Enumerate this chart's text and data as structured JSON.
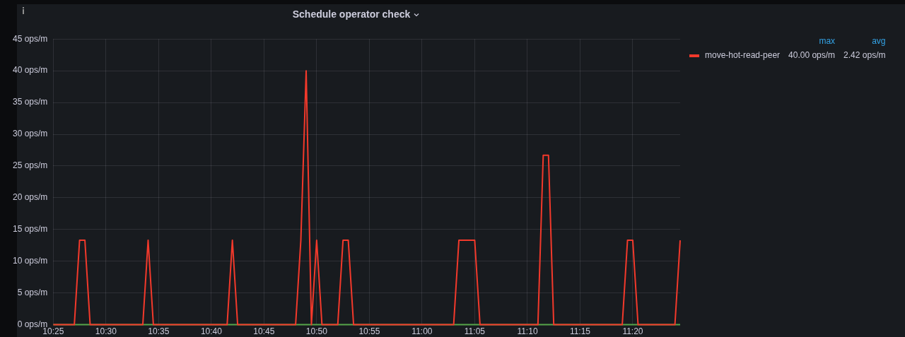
{
  "chart_data": {
    "type": "line",
    "title": "Schedule operator check",
    "xlim": [
      10.4167,
      11.4083
    ],
    "xticks": [
      {
        "value": 10.4167,
        "label": "10:25"
      },
      {
        "value": 10.5,
        "label": "10:30"
      },
      {
        "value": 10.5833,
        "label": "10:35"
      },
      {
        "value": 10.6667,
        "label": "10:40"
      },
      {
        "value": 10.75,
        "label": "10:45"
      },
      {
        "value": 10.8333,
        "label": "10:50"
      },
      {
        "value": 10.9167,
        "label": "10:55"
      },
      {
        "value": 11,
        "label": "11:00"
      },
      {
        "value": 11.0833,
        "label": "11:05"
      },
      {
        "value": 11.1667,
        "label": "11:10"
      },
      {
        "value": 11.25,
        "label": "11:15"
      },
      {
        "value": 11.3333,
        "label": "11:20"
      }
    ],
    "ylim": [
      0,
      45
    ],
    "yticks": [
      {
        "value": 0,
        "label": "0 ops/m"
      },
      {
        "value": 5,
        "label": "5 ops/m"
      },
      {
        "value": 10,
        "label": "10 ops/m"
      },
      {
        "value": 15,
        "label": "15 ops/m"
      },
      {
        "value": 20,
        "label": "20 ops/m"
      },
      {
        "value": 25,
        "label": "25 ops/m"
      },
      {
        "value": 30,
        "label": "30 ops/m"
      },
      {
        "value": 35,
        "label": "35 ops/m"
      },
      {
        "value": 40,
        "label": "40 ops/m"
      },
      {
        "value": 45,
        "label": "45 ops/m"
      }
    ],
    "grid": true,
    "legend": "right",
    "marker": "none",
    "line_style": "solid",
    "annotations": [
      "max",
      "avg",
      "40.00 ops/m",
      "2.42 ops/m"
    ],
    "series": [
      {
        "name": "move-hot-read-peer",
        "color": "#f2392b",
        "x": [
          10.4167,
          10.45,
          10.4583,
          10.4667,
          10.475,
          10.5583,
          10.5667,
          10.575,
          10.6917,
          10.7,
          10.7083,
          10.8,
          10.8083,
          10.8167,
          10.825,
          10.8333,
          10.8417,
          10.8667,
          10.875,
          10.8833,
          10.8917,
          11.05,
          11.0583,
          11.0833,
          11.0917,
          11.1833,
          11.1917,
          11.2,
          11.2083,
          11.3167,
          11.325,
          11.3333,
          11.3417,
          11.4,
          11.4083
        ],
        "values": [
          0,
          0,
          13.3,
          13.3,
          0,
          0,
          13.3,
          0,
          0,
          13.3,
          0,
          0,
          13.3,
          40,
          0,
          13.3,
          0,
          0,
          13.3,
          13.3,
          0,
          0,
          13.3,
          13.3,
          0,
          0,
          26.7,
          26.7,
          0,
          0,
          13.3,
          13.3,
          0,
          0,
          13.3
        ]
      },
      {
        "color": "#56a64b",
        "x": [
          10.4167,
          11.4083
        ],
        "values": [
          0,
          0
        ]
      }
    ]
  }
}
